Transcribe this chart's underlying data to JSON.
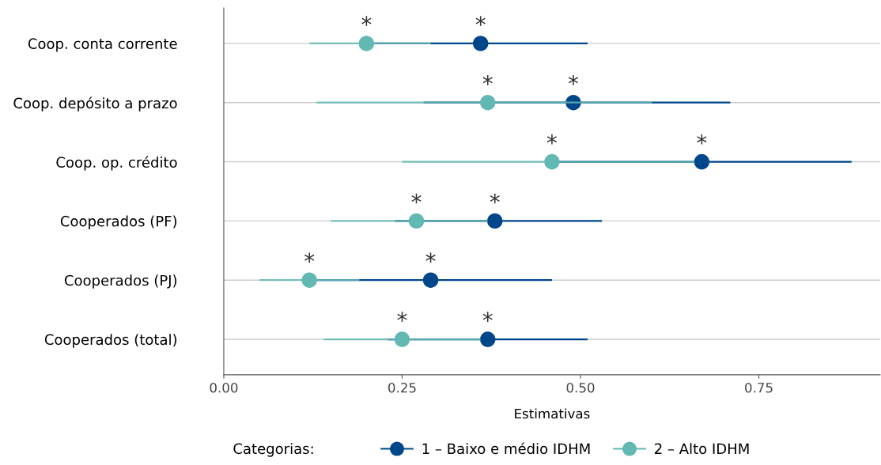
{
  "chart_data": {
    "type": "scatter",
    "orientation": "horizontal",
    "categories": [
      "Coop. conta corrente",
      "Coop. depósito a prazo",
      "Coop. op. crédito",
      "Cooperados (PF)",
      "Cooperados (PJ)",
      "Cooperados (total)"
    ],
    "series": [
      {
        "name": "1 – Baixo e médio IDHM",
        "color": "#00468b",
        "values": [
          0.36,
          0.49,
          0.67,
          0.38,
          0.29,
          0.37
        ],
        "errors": [
          [
            0.21,
            0.51
          ],
          [
            0.28,
            0.71
          ],
          [
            0.47,
            0.88
          ],
          [
            0.24,
            0.53
          ],
          [
            0.13,
            0.46
          ],
          [
            0.23,
            0.51
          ]
        ]
      },
      {
        "name": "2 – Alto IDHM",
        "color": "#62b8b2",
        "values": [
          0.2,
          0.37,
          0.46,
          0.27,
          0.12,
          0.25
        ],
        "errors": [
          [
            0.12,
            0.29
          ],
          [
            0.13,
            0.6
          ],
          [
            0.25,
            0.66
          ],
          [
            0.15,
            0.37
          ],
          [
            0.05,
            0.19
          ],
          [
            0.14,
            0.36
          ]
        ]
      }
    ],
    "xlabel": "Estimativas",
    "legend_title": "Categorias:",
    "legend": "bottom",
    "xlim": [
      0,
      0.92
    ],
    "xticks": [
      {
        "value": 0,
        "label": "0.00"
      },
      {
        "value": 0.25,
        "label": "0.25"
      },
      {
        "value": 0.5,
        "label": "0.50"
      },
      {
        "value": 0.75,
        "label": "0.75"
      }
    ],
    "grid": "y",
    "marker": "circle",
    "annotations": [
      {
        "text": "*",
        "x": 0.36,
        "y": "Coop. conta corrente"
      },
      {
        "text": "*",
        "x": 0.2,
        "y": "Coop. conta corrente"
      },
      {
        "text": "*",
        "x": 0.49,
        "y": "Coop. depósito a prazo"
      },
      {
        "text": "*",
        "x": 0.37,
        "y": "Coop. depósito a prazo"
      },
      {
        "text": "*",
        "x": 0.67,
        "y": "Coop. op. crédito"
      },
      {
        "text": "*",
        "x": 0.46,
        "y": "Coop. op. crédito"
      },
      {
        "text": "*",
        "x": 0.38,
        "y": "Cooperados (PF)"
      },
      {
        "text": "*",
        "x": 0.27,
        "y": "Cooperados (PF)"
      },
      {
        "text": "*",
        "x": 0.29,
        "y": "Cooperados (PJ)"
      },
      {
        "text": "*",
        "x": 0.12,
        "y": "Cooperados (PJ)"
      },
      {
        "text": "*",
        "x": 0.37,
        "y": "Cooperados (total)"
      },
      {
        "text": "*",
        "x": 0.25,
        "y": "Cooperados (total)"
      }
    ]
  }
}
